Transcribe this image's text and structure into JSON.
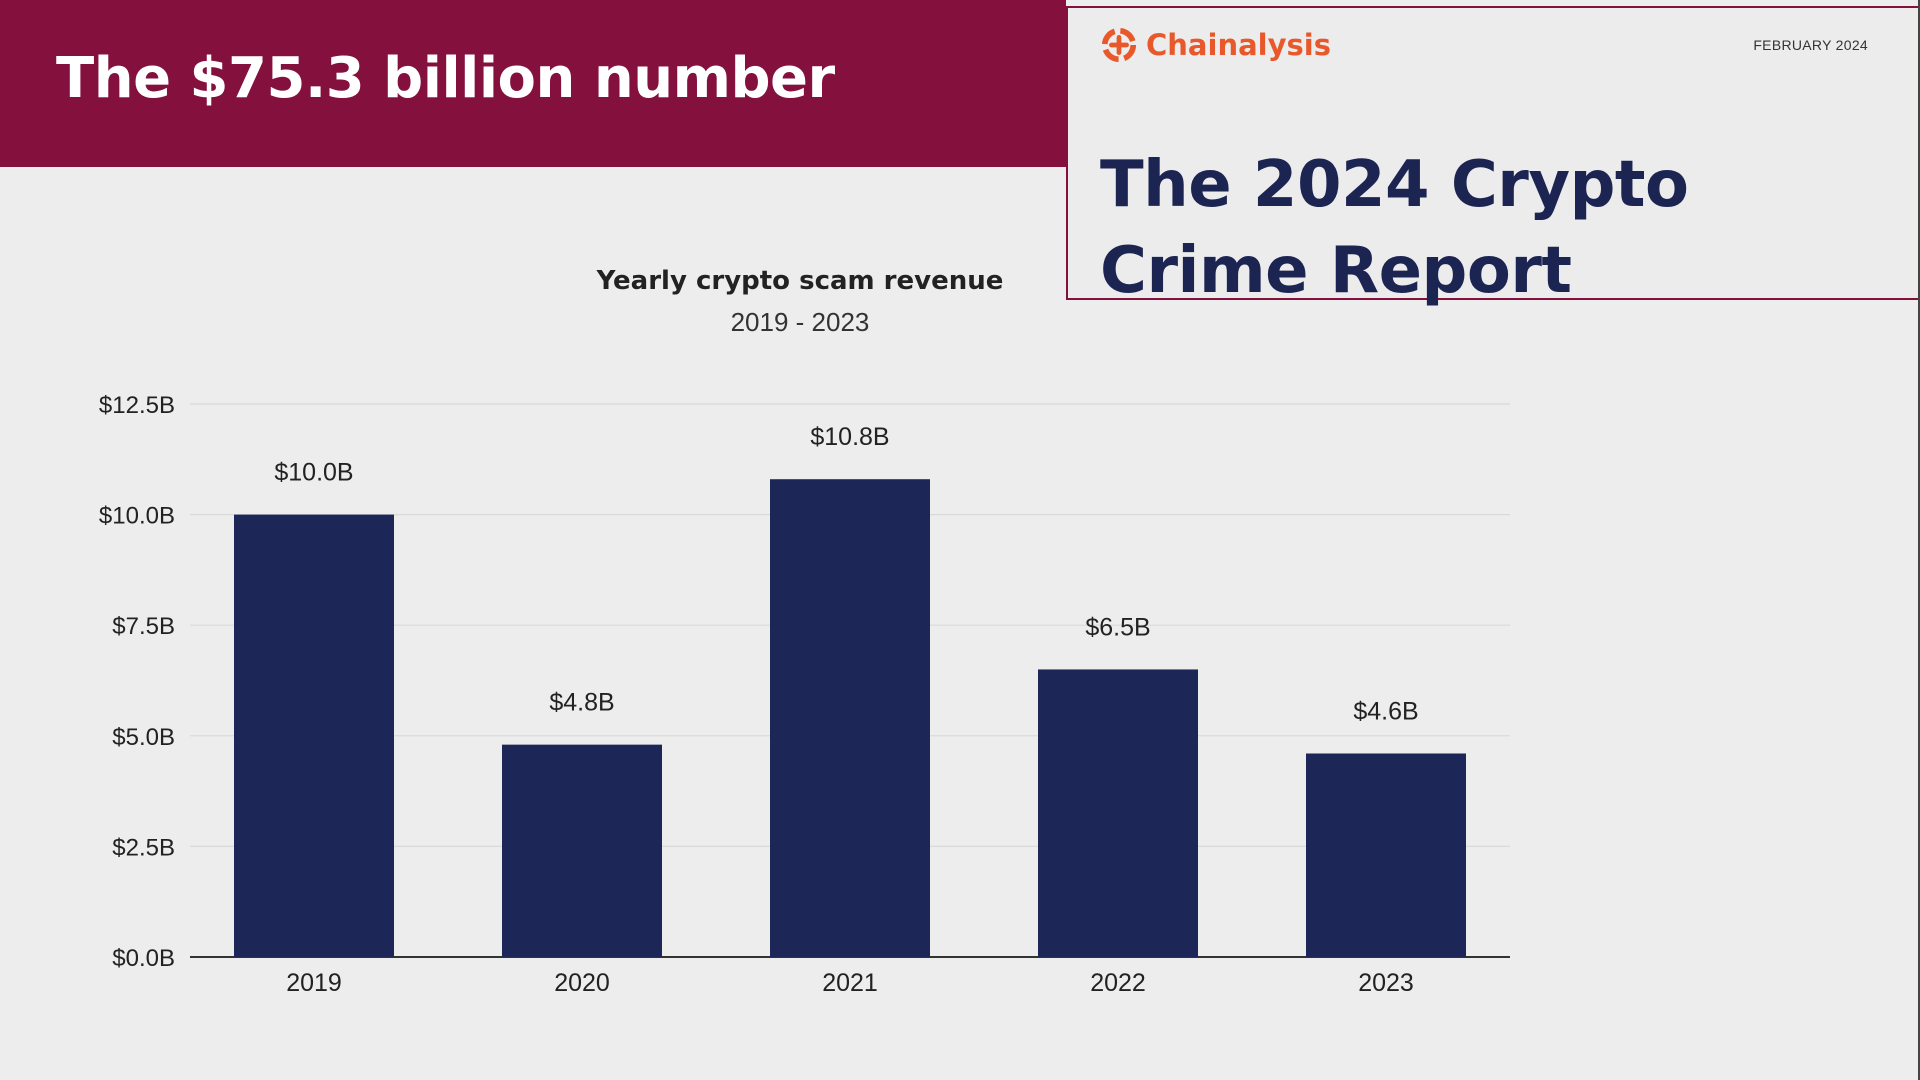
{
  "slide": {
    "title": "The $75.3 billion number"
  },
  "report_card": {
    "brand": "Chainalysis",
    "date": "FEBRUARY 2024",
    "title_line1": "The 2024 Crypto",
    "title_line2": "Crime Report",
    "brand_color": "#e9582b",
    "title_color": "#1c2452",
    "logo_icon": "chainalysis-logo-icon"
  },
  "colors": {
    "header_bg": "#84103e",
    "bar": "#1c2758"
  },
  "chart_data": {
    "type": "bar",
    "title": "Yearly crypto scam revenue",
    "subtitle": "2019 - 2023",
    "categories": [
      "2019",
      "2020",
      "2021",
      "2022",
      "2023"
    ],
    "values": [
      10.0,
      4.8,
      10.8,
      6.5,
      4.6
    ],
    "data_labels": [
      "$10.0B",
      "$4.8B",
      "$10.8B",
      "$6.5B",
      "$4.6B"
    ],
    "unit": "$B",
    "ylim": [
      0,
      12.5
    ],
    "yticks": [
      0,
      2.5,
      5.0,
      7.5,
      10.0,
      12.5
    ],
    "ytick_labels": [
      "$0.0B",
      "$2.5B",
      "$5.0B",
      "$7.5B",
      "$10.0B",
      "$12.5B"
    ],
    "xlabel": "",
    "ylabel": "",
    "grid": true,
    "legend": "none"
  }
}
